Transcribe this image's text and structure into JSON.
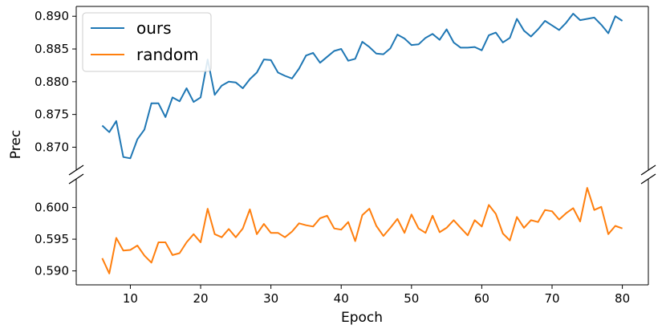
{
  "chart_data": {
    "type": "line",
    "xlabel": "Epoch",
    "ylabel": "Prec",
    "broken_y_axis": true,
    "xlim": [
      2.3,
      83.7
    ],
    "x_ticks": [
      10,
      20,
      30,
      40,
      50,
      60,
      70,
      80
    ],
    "upper_panel": {
      "ylim": [
        0.8665,
        0.8915
      ],
      "y_ticks": [
        "0.870",
        "0.875",
        "0.880",
        "0.885",
        "0.890"
      ]
    },
    "lower_panel": {
      "ylim": [
        0.5878,
        0.6045
      ],
      "y_ticks": [
        "0.590",
        "0.595",
        "0.600"
      ]
    },
    "legend": {
      "placement": "upper-left"
    },
    "x": [
      6,
      7,
      8,
      9,
      10,
      11,
      12,
      13,
      14,
      15,
      16,
      17,
      18,
      19,
      20,
      21,
      22,
      23,
      24,
      25,
      26,
      27,
      28,
      29,
      30,
      31,
      32,
      33,
      34,
      35,
      36,
      37,
      38,
      39,
      40,
      41,
      42,
      43,
      44,
      45,
      46,
      47,
      48,
      49,
      50,
      51,
      52,
      53,
      54,
      55,
      56,
      57,
      58,
      59,
      60,
      61,
      62,
      63,
      64,
      65,
      66,
      67,
      68,
      69,
      70,
      71,
      72,
      73,
      74,
      75,
      76,
      77,
      78,
      79,
      80
    ],
    "series": [
      {
        "name": "ours",
        "color": "#1f77b4",
        "panel": "upper",
        "values": [
          0.8733,
          0.8723,
          0.874,
          0.8685,
          0.8683,
          0.8712,
          0.8727,
          0.8767,
          0.8767,
          0.8746,
          0.8776,
          0.877,
          0.879,
          0.8769,
          0.8776,
          0.8834,
          0.878,
          0.8794,
          0.88,
          0.8799,
          0.879,
          0.8804,
          0.8814,
          0.8834,
          0.8833,
          0.8814,
          0.8809,
          0.8805,
          0.882,
          0.884,
          0.8844,
          0.8829,
          0.8838,
          0.8847,
          0.885,
          0.8832,
          0.8835,
          0.8861,
          0.8853,
          0.8843,
          0.8842,
          0.8851,
          0.8872,
          0.8866,
          0.8856,
          0.8857,
          0.8867,
          0.8873,
          0.8864,
          0.888,
          0.886,
          0.8852,
          0.8852,
          0.8853,
          0.8848,
          0.8871,
          0.8875,
          0.886,
          0.8867,
          0.8896,
          0.8878,
          0.8869,
          0.888,
          0.8893,
          0.8886,
          0.8879,
          0.889,
          0.8904,
          0.8894,
          0.8896,
          0.8898,
          0.8887,
          0.8874,
          0.89,
          0.8893
        ]
      },
      {
        "name": "random",
        "color": "#ff7f0e",
        "panel": "lower",
        "values": [
          0.592,
          0.5896,
          0.5952,
          0.5932,
          0.5933,
          0.594,
          0.5924,
          0.5913,
          0.5945,
          0.5945,
          0.5925,
          0.5928,
          0.5945,
          0.5958,
          0.5945,
          0.5998,
          0.5958,
          0.5953,
          0.5966,
          0.5953,
          0.5967,
          0.5997,
          0.5958,
          0.5974,
          0.596,
          0.596,
          0.5953,
          0.5962,
          0.5975,
          0.5972,
          0.597,
          0.5983,
          0.5987,
          0.5967,
          0.5965,
          0.5977,
          0.5947,
          0.5988,
          0.5998,
          0.5971,
          0.5955,
          0.5968,
          0.5982,
          0.596,
          0.5989,
          0.5967,
          0.596,
          0.5987,
          0.5961,
          0.5968,
          0.598,
          0.5968,
          0.5956,
          0.598,
          0.597,
          0.6004,
          0.599,
          0.5959,
          0.5948,
          0.5985,
          0.5968,
          0.598,
          0.5977,
          0.5996,
          0.5994,
          0.5981,
          0.5991,
          0.5999,
          0.5978,
          0.6031,
          0.5996,
          0.6001,
          0.5958,
          0.5971,
          0.5967
        ]
      }
    ]
  }
}
